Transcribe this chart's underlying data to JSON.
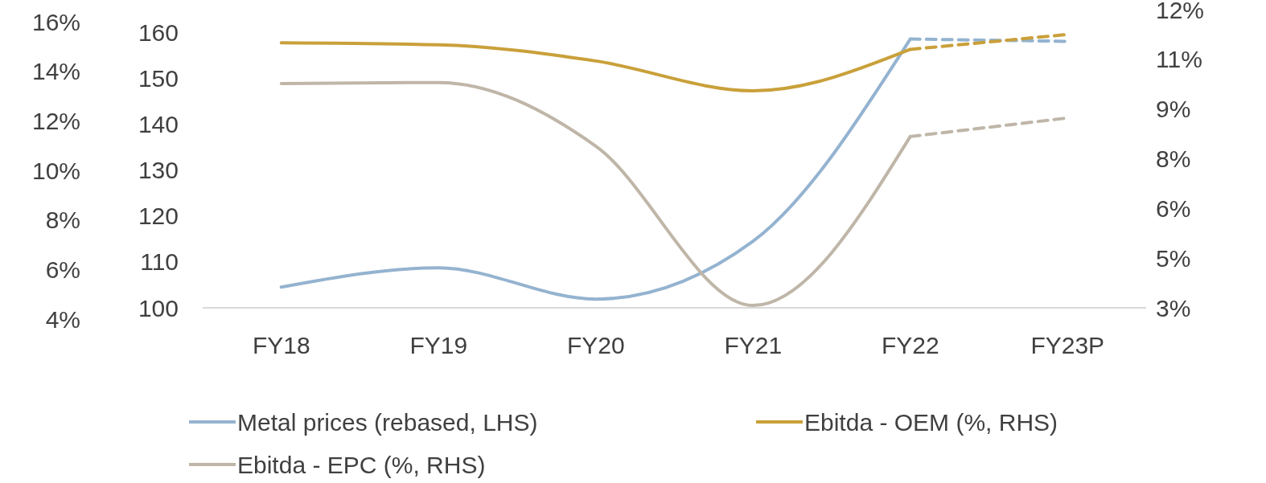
{
  "chart_data": {
    "type": "line",
    "categories": [
      "FY18",
      "FY19",
      "FY20",
      "FY21",
      "FY22",
      "FY23P"
    ],
    "series": [
      {
        "name": "Metal prices (rebased, LHS)",
        "color": "#94b3d0",
        "axis": "y",
        "line_style": "solid",
        "values": [
          104.5,
          108.7,
          101.9,
          114.5,
          158.5,
          null
        ]
      },
      {
        "name": "Ebitda - OEM (%, RHS)",
        "color": "#c9a03a",
        "axis": "y2",
        "line_style": "solid",
        "values": [
          11.0,
          10.94,
          10.45,
          9.55,
          10.8,
          null
        ]
      },
      {
        "name": "Ebitda - EPC (%, RHS)",
        "color": "#bfb6a8",
        "axis": "y2",
        "line_style": "solid",
        "values": [
          9.77,
          9.8,
          7.88,
          3.07,
          8.17,
          null
        ]
      },
      {
        "color": "#94b3d0",
        "axis": "y",
        "line_style": "dashed",
        "values": [
          null,
          null,
          null,
          null,
          158.5,
          158
        ]
      },
      {
        "color": "#c9a03a",
        "axis": "y2",
        "line_style": "dashed",
        "values": [
          null,
          null,
          null,
          null,
          10.8,
          11.25
        ]
      },
      {
        "color": "#bfb6a8",
        "axis": "y2",
        "line_style": "dashed",
        "values": [
          null,
          null,
          null,
          null,
          8.17,
          8.73
        ]
      }
    ],
    "ylim": [
      100,
      160
    ],
    "yticks": [
      100,
      110,
      120,
      130,
      140,
      150,
      160
    ],
    "y2lim": [
      3,
      12
    ],
    "y2ticks": [
      {
        "value": 3,
        "label": "3%"
      },
      {
        "value": 4.5,
        "label": "5%"
      },
      {
        "value": 6,
        "label": "6%"
      },
      {
        "value": 7.5,
        "label": "8%"
      },
      {
        "value": 9,
        "label": "9%"
      },
      {
        "value": 10.5,
        "label": "11%"
      },
      {
        "value": 12,
        "label": "12%"
      }
    ],
    "y3lim": [
      4,
      16
    ],
    "y3ticks": [
      {
        "value": 4,
        "label": "4%"
      },
      {
        "value": 6,
        "label": "6%"
      },
      {
        "value": 8,
        "label": "8%"
      },
      {
        "value": 10,
        "label": "10%"
      },
      {
        "value": 12,
        "label": "12%"
      },
      {
        "value": 14,
        "label": "14%"
      },
      {
        "value": 16,
        "label": "16%"
      }
    ],
    "grid": false,
    "legend": "bottom"
  }
}
